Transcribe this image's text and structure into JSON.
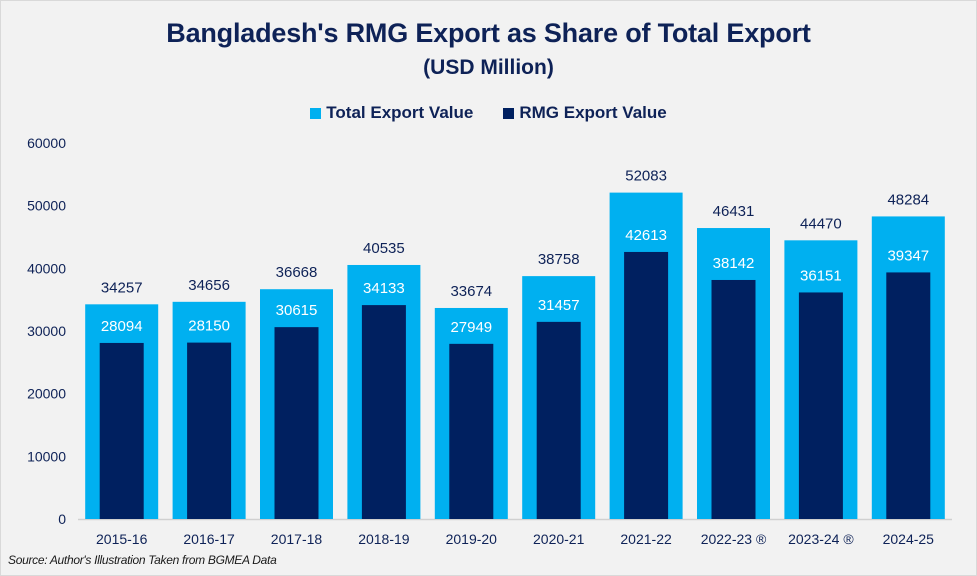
{
  "chart_data": {
    "type": "bar",
    "title": "Bangladesh's RMG Export as Share of Total Export",
    "subtitle": "(USD Million)",
    "xlabel": "",
    "ylabel": "",
    "ylim": [
      0,
      60000
    ],
    "yticks": [
      "0",
      "10000",
      "20000",
      "30000",
      "40000",
      "50000",
      "60000"
    ],
    "grid": false,
    "legend_position": "top-center",
    "categories": [
      "2015-16",
      "2016-17",
      "2017-18",
      "2018-19",
      "2019-20",
      "2020-21",
      "2021-22",
      "2022-23 ®",
      "2023-24 ®",
      "2024-25"
    ],
    "series": [
      {
        "name": "Total Export Value",
        "color": "#00b0f0",
        "values": [
          34257,
          34656,
          36668,
          40535,
          33674,
          38758,
          52083,
          46431,
          44470,
          48284
        ]
      },
      {
        "name": "RMG Export Value",
        "color": "#002060",
        "values": [
          28094,
          28150,
          30615,
          34133,
          27949,
          31457,
          42613,
          38142,
          36151,
          39347
        ]
      }
    ]
  },
  "source_note": "Source: Author's Illustration Taken from BGMEA Data"
}
